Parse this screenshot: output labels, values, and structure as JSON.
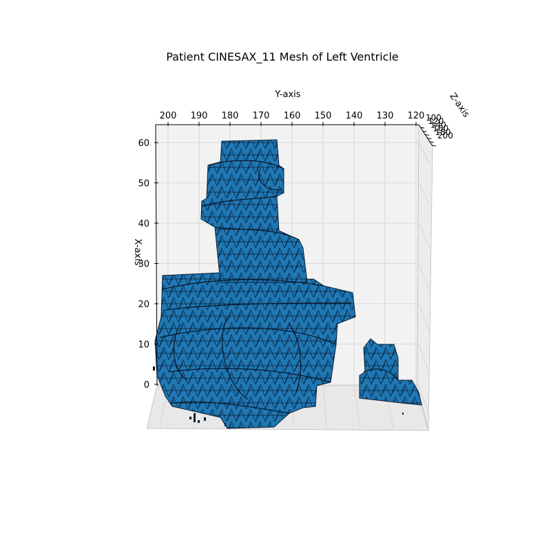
{
  "chart_data": {
    "type": "surface",
    "title": "Patient CINESAX_11 Mesh of Left Ventricle",
    "xlabel": "X-axis",
    "ylabel": "Y-axis",
    "zlabel": "Z-axis",
    "x_ticks": [
      "0",
      "10",
      "20",
      "30",
      "40",
      "50",
      "60"
    ],
    "y_ticks": [
      "200",
      "190",
      "180",
      "170",
      "160",
      "150",
      "140",
      "130",
      "120"
    ],
    "z_ticks": [
      "100",
      "120",
      "140",
      "160",
      "180",
      "200"
    ],
    "xlim": [
      0,
      62
    ],
    "ylim": [
      203,
      119
    ],
    "grid": true,
    "colors": {
      "face": "#1f77b4",
      "face_light": "#4a90c8",
      "edge": "#000000",
      "pane": "#f2f2f2",
      "grid": "#d0d0d0"
    }
  }
}
